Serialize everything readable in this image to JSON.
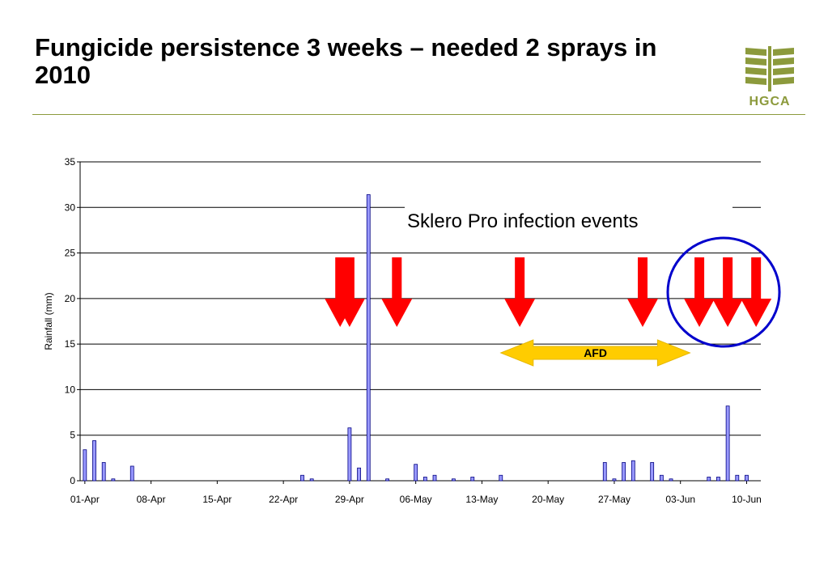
{
  "slide": {
    "title": "Fungicide persistence 3 weeks – needed 2 sprays in 2010"
  },
  "logo": {
    "text": "HGCA",
    "color": "#8c9a3c"
  },
  "chart_data": {
    "type": "bar",
    "title": "",
    "xlabel": "",
    "ylabel": "Rainfall (mm)",
    "ylim": [
      0,
      35
    ],
    "yticks": [
      0,
      5,
      10,
      15,
      20,
      25,
      30,
      35
    ],
    "grid": true,
    "x_domain": [
      "2010-04-01",
      "2010-06-12"
    ],
    "xtick_labels": [
      "01-Apr",
      "08-Apr",
      "15-Apr",
      "22-Apr",
      "29-Apr",
      "06-May",
      "13-May",
      "20-May",
      "27-May",
      "03-Jun",
      "10-Jun"
    ],
    "bar_color": "#9999ff",
    "bar_edge_color": "#000080",
    "series": [
      {
        "name": "",
        "points": [
          {
            "x": "01-Apr",
            "y": 3.4
          },
          {
            "x": "02-Apr",
            "y": 4.4
          },
          {
            "x": "03-Apr",
            "y": 2.0
          },
          {
            "x": "04-Apr",
            "y": 0.2
          },
          {
            "x": "06-Apr",
            "y": 1.6
          },
          {
            "x": "24-Apr",
            "y": 0.6
          },
          {
            "x": "25-Apr",
            "y": 0.2
          },
          {
            "x": "29-Apr",
            "y": 5.8
          },
          {
            "x": "30-Apr",
            "y": 1.4
          },
          {
            "x": "01-May",
            "y": 31.4
          },
          {
            "x": "03-May",
            "y": 0.2
          },
          {
            "x": "06-May",
            "y": 1.8
          },
          {
            "x": "07-May",
            "y": 0.4
          },
          {
            "x": "08-May",
            "y": 0.6
          },
          {
            "x": "10-May",
            "y": 0.2
          },
          {
            "x": "12-May",
            "y": 0.4
          },
          {
            "x": "15-May",
            "y": 0.6
          },
          {
            "x": "26-May",
            "y": 2.0
          },
          {
            "x": "27-May",
            "y": 0.2
          },
          {
            "x": "28-May",
            "y": 2.0
          },
          {
            "x": "29-May",
            "y": 2.2
          },
          {
            "x": "31-May",
            "y": 2.0
          },
          {
            "x": "01-Jun",
            "y": 0.6
          },
          {
            "x": "02-Jun",
            "y": 0.2
          },
          {
            "x": "06-Jun",
            "y": 0.4
          },
          {
            "x": "07-Jun",
            "y": 0.4
          },
          {
            "x": "08-Jun",
            "y": 8.2
          },
          {
            "x": "09-Jun",
            "y": 0.6
          },
          {
            "x": "10-Jun",
            "y": 0.6
          }
        ]
      }
    ],
    "annotations": {
      "infection_label": "Sklero Pro infection events",
      "infection_events": [
        "28-Apr",
        "29-Apr",
        "04-May",
        "17-May",
        "30-May",
        "05-Jun",
        "08-Jun",
        "11-Jun"
      ],
      "arrow_color": "#ff0000",
      "afd_label": "AFD",
      "afd_range": [
        "15-May",
        "04-Jun"
      ],
      "afd_color": "#ffcc00",
      "circle_color": "#0000cc"
    }
  }
}
